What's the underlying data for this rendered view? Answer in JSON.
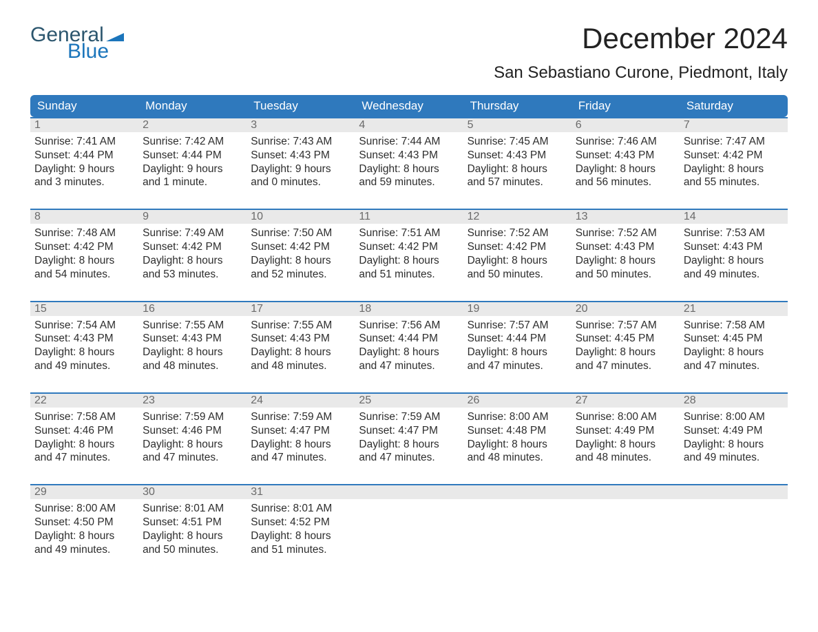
{
  "logo": {
    "word1": "General",
    "word2": "Blue",
    "flag_color": "#1b75bb",
    "word1_color": "#2c566e",
    "word2_color": "#1b75bb"
  },
  "title": "December 2024",
  "location": "San Sebastiano Curone, Piedmont, Italy",
  "colors": {
    "header_bg": "#2f79bd",
    "header_text": "#ffffff",
    "date_strip_bg": "#e9e9e9",
    "date_strip_border": "#2f79bd",
    "date_text": "#6a6a6a",
    "body_text": "#2d2d2d",
    "page_bg": "#ffffff"
  },
  "typography": {
    "title_fontsize": 42,
    "location_fontsize": 24,
    "header_fontsize": 17,
    "date_fontsize": 16,
    "body_fontsize": 15.5,
    "font_family": "Arial"
  },
  "day_headers": [
    "Sunday",
    "Monday",
    "Tuesday",
    "Wednesday",
    "Thursday",
    "Friday",
    "Saturday"
  ],
  "weeks": [
    [
      {
        "date": "1",
        "sunrise": "Sunrise: 7:41 AM",
        "sunset": "Sunset: 4:44 PM",
        "daylight1": "Daylight: 9 hours",
        "daylight2": "and 3 minutes."
      },
      {
        "date": "2",
        "sunrise": "Sunrise: 7:42 AM",
        "sunset": "Sunset: 4:44 PM",
        "daylight1": "Daylight: 9 hours",
        "daylight2": "and 1 minute."
      },
      {
        "date": "3",
        "sunrise": "Sunrise: 7:43 AM",
        "sunset": "Sunset: 4:43 PM",
        "daylight1": "Daylight: 9 hours",
        "daylight2": "and 0 minutes."
      },
      {
        "date": "4",
        "sunrise": "Sunrise: 7:44 AM",
        "sunset": "Sunset: 4:43 PM",
        "daylight1": "Daylight: 8 hours",
        "daylight2": "and 59 minutes."
      },
      {
        "date": "5",
        "sunrise": "Sunrise: 7:45 AM",
        "sunset": "Sunset: 4:43 PM",
        "daylight1": "Daylight: 8 hours",
        "daylight2": "and 57 minutes."
      },
      {
        "date": "6",
        "sunrise": "Sunrise: 7:46 AM",
        "sunset": "Sunset: 4:43 PM",
        "daylight1": "Daylight: 8 hours",
        "daylight2": "and 56 minutes."
      },
      {
        "date": "7",
        "sunrise": "Sunrise: 7:47 AM",
        "sunset": "Sunset: 4:42 PM",
        "daylight1": "Daylight: 8 hours",
        "daylight2": "and 55 minutes."
      }
    ],
    [
      {
        "date": "8",
        "sunrise": "Sunrise: 7:48 AM",
        "sunset": "Sunset: 4:42 PM",
        "daylight1": "Daylight: 8 hours",
        "daylight2": "and 54 minutes."
      },
      {
        "date": "9",
        "sunrise": "Sunrise: 7:49 AM",
        "sunset": "Sunset: 4:42 PM",
        "daylight1": "Daylight: 8 hours",
        "daylight2": "and 53 minutes."
      },
      {
        "date": "10",
        "sunrise": "Sunrise: 7:50 AM",
        "sunset": "Sunset: 4:42 PM",
        "daylight1": "Daylight: 8 hours",
        "daylight2": "and 52 minutes."
      },
      {
        "date": "11",
        "sunrise": "Sunrise: 7:51 AM",
        "sunset": "Sunset: 4:42 PM",
        "daylight1": "Daylight: 8 hours",
        "daylight2": "and 51 minutes."
      },
      {
        "date": "12",
        "sunrise": "Sunrise: 7:52 AM",
        "sunset": "Sunset: 4:42 PM",
        "daylight1": "Daylight: 8 hours",
        "daylight2": "and 50 minutes."
      },
      {
        "date": "13",
        "sunrise": "Sunrise: 7:52 AM",
        "sunset": "Sunset: 4:43 PM",
        "daylight1": "Daylight: 8 hours",
        "daylight2": "and 50 minutes."
      },
      {
        "date": "14",
        "sunrise": "Sunrise: 7:53 AM",
        "sunset": "Sunset: 4:43 PM",
        "daylight1": "Daylight: 8 hours",
        "daylight2": "and 49 minutes."
      }
    ],
    [
      {
        "date": "15",
        "sunrise": "Sunrise: 7:54 AM",
        "sunset": "Sunset: 4:43 PM",
        "daylight1": "Daylight: 8 hours",
        "daylight2": "and 49 minutes."
      },
      {
        "date": "16",
        "sunrise": "Sunrise: 7:55 AM",
        "sunset": "Sunset: 4:43 PM",
        "daylight1": "Daylight: 8 hours",
        "daylight2": "and 48 minutes."
      },
      {
        "date": "17",
        "sunrise": "Sunrise: 7:55 AM",
        "sunset": "Sunset: 4:43 PM",
        "daylight1": "Daylight: 8 hours",
        "daylight2": "and 48 minutes."
      },
      {
        "date": "18",
        "sunrise": "Sunrise: 7:56 AM",
        "sunset": "Sunset: 4:44 PM",
        "daylight1": "Daylight: 8 hours",
        "daylight2": "and 47 minutes."
      },
      {
        "date": "19",
        "sunrise": "Sunrise: 7:57 AM",
        "sunset": "Sunset: 4:44 PM",
        "daylight1": "Daylight: 8 hours",
        "daylight2": "and 47 minutes."
      },
      {
        "date": "20",
        "sunrise": "Sunrise: 7:57 AM",
        "sunset": "Sunset: 4:45 PM",
        "daylight1": "Daylight: 8 hours",
        "daylight2": "and 47 minutes."
      },
      {
        "date": "21",
        "sunrise": "Sunrise: 7:58 AM",
        "sunset": "Sunset: 4:45 PM",
        "daylight1": "Daylight: 8 hours",
        "daylight2": "and 47 minutes."
      }
    ],
    [
      {
        "date": "22",
        "sunrise": "Sunrise: 7:58 AM",
        "sunset": "Sunset: 4:46 PM",
        "daylight1": "Daylight: 8 hours",
        "daylight2": "and 47 minutes."
      },
      {
        "date": "23",
        "sunrise": "Sunrise: 7:59 AM",
        "sunset": "Sunset: 4:46 PM",
        "daylight1": "Daylight: 8 hours",
        "daylight2": "and 47 minutes."
      },
      {
        "date": "24",
        "sunrise": "Sunrise: 7:59 AM",
        "sunset": "Sunset: 4:47 PM",
        "daylight1": "Daylight: 8 hours",
        "daylight2": "and 47 minutes."
      },
      {
        "date": "25",
        "sunrise": "Sunrise: 7:59 AM",
        "sunset": "Sunset: 4:47 PM",
        "daylight1": "Daylight: 8 hours",
        "daylight2": "and 47 minutes."
      },
      {
        "date": "26",
        "sunrise": "Sunrise: 8:00 AM",
        "sunset": "Sunset: 4:48 PM",
        "daylight1": "Daylight: 8 hours",
        "daylight2": "and 48 minutes."
      },
      {
        "date": "27",
        "sunrise": "Sunrise: 8:00 AM",
        "sunset": "Sunset: 4:49 PM",
        "daylight1": "Daylight: 8 hours",
        "daylight2": "and 48 minutes."
      },
      {
        "date": "28",
        "sunrise": "Sunrise: 8:00 AM",
        "sunset": "Sunset: 4:49 PM",
        "daylight1": "Daylight: 8 hours",
        "daylight2": "and 49 minutes."
      }
    ],
    [
      {
        "date": "29",
        "sunrise": "Sunrise: 8:00 AM",
        "sunset": "Sunset: 4:50 PM",
        "daylight1": "Daylight: 8 hours",
        "daylight2": "and 49 minutes."
      },
      {
        "date": "30",
        "sunrise": "Sunrise: 8:01 AM",
        "sunset": "Sunset: 4:51 PM",
        "daylight1": "Daylight: 8 hours",
        "daylight2": "and 50 minutes."
      },
      {
        "date": "31",
        "sunrise": "Sunrise: 8:01 AM",
        "sunset": "Sunset: 4:52 PM",
        "daylight1": "Daylight: 8 hours",
        "daylight2": "and 51 minutes."
      },
      null,
      null,
      null,
      null
    ]
  ]
}
